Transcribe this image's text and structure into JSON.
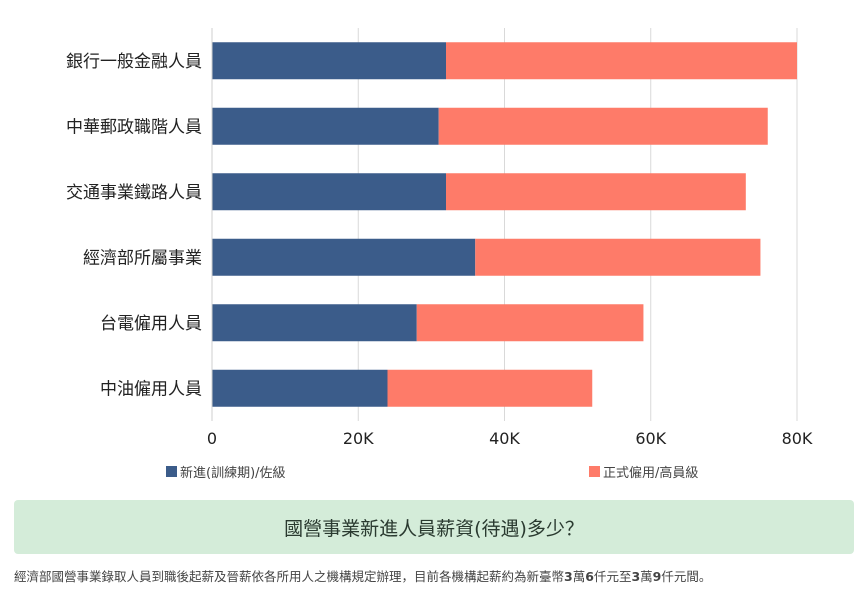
{
  "chart_data": {
    "type": "bar",
    "orientation": "horizontal",
    "stacked": true,
    "categories": [
      "銀行一般金融人員",
      "中華郵政職階人員",
      "交通事業鐵路人員",
      "經濟部所屬事業",
      "台電僱用人員",
      "中油僱用人員"
    ],
    "series": [
      {
        "name": "新進(訓練期)/佐級",
        "color": "#3b5c8a",
        "values": [
          32000,
          31000,
          32000,
          36000,
          28000,
          24000
        ]
      },
      {
        "name": "正式僱用/高員級",
        "color": "#fe7b69",
        "values": [
          48000,
          45000,
          41000,
          39000,
          31000,
          28000
        ]
      }
    ],
    "xlim": [
      0,
      80000
    ],
    "xticks": [
      "0",
      "20K",
      "40K",
      "60K",
      "80K"
    ],
    "grid": true,
    "legend": "bottom"
  },
  "banner": {
    "title": "國營事業新進人員薪資(待遇)多少？"
  },
  "note": {
    "pre": "經濟部國營事業錄取人員到職後起薪及晉薪依各所用人之機構規定辦理，目前各機構起薪約為新臺幣",
    "n1": "3",
    "u1": "萬",
    "n2": "6",
    "u2": "仟元至",
    "n3": "3",
    "u3": "萬",
    "n4": "9",
    "post": "仟元間。"
  }
}
